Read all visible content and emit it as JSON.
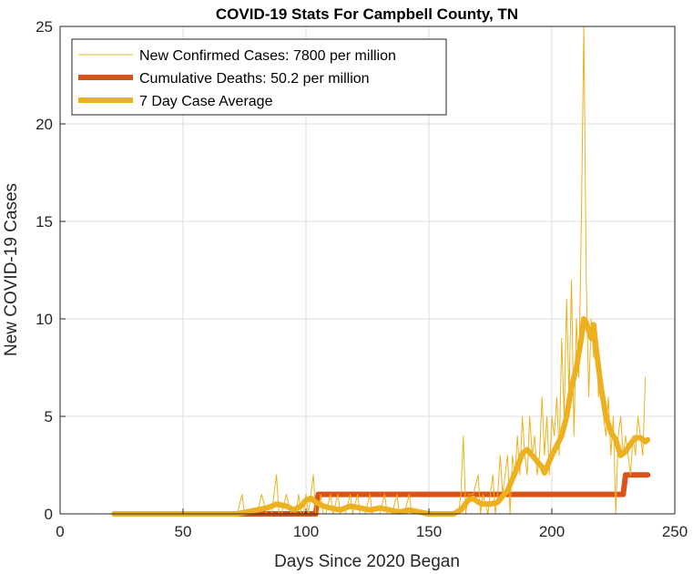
{
  "chart_data": {
    "type": "line",
    "title": "COVID-19 Stats For Campbell County, TN",
    "xlabel": "Days Since 2020 Began",
    "ylabel": "New COVID-19 Cases",
    "xlim": [
      0,
      250
    ],
    "ylim": [
      0,
      25
    ],
    "xticks": [
      0,
      50,
      100,
      150,
      200,
      250
    ],
    "yticks": [
      0,
      5,
      10,
      15,
      20,
      25
    ],
    "grid": true,
    "legend_position": "top-left",
    "series": [
      {
        "name": "New Confirmed Cases: 7800 per million",
        "color": "#EDB120",
        "style": "thin",
        "points": [
          [
            22,
            0
          ],
          [
            70,
            0
          ],
          [
            72,
            0
          ],
          [
            74,
            1
          ],
          [
            75,
            0
          ],
          [
            80,
            0
          ],
          [
            82,
            1
          ],
          [
            84,
            0
          ],
          [
            86,
            0
          ],
          [
            88,
            2
          ],
          [
            89,
            0
          ],
          [
            90,
            0
          ],
          [
            92,
            1
          ],
          [
            94,
            0
          ],
          [
            96,
            0
          ],
          [
            97,
            1
          ],
          [
            98,
            0
          ],
          [
            99,
            0
          ],
          [
            100,
            1
          ],
          [
            101,
            0
          ],
          [
            102,
            1
          ],
          [
            103,
            2
          ],
          [
            104,
            0
          ],
          [
            105,
            0
          ],
          [
            106,
            1
          ],
          [
            107,
            0
          ],
          [
            108,
            0
          ],
          [
            110,
            1
          ],
          [
            111,
            0
          ],
          [
            113,
            1
          ],
          [
            114,
            0
          ],
          [
            116,
            0
          ],
          [
            118,
            1
          ],
          [
            119,
            0
          ],
          [
            121,
            1
          ],
          [
            122,
            0
          ],
          [
            124,
            0
          ],
          [
            126,
            1
          ],
          [
            127,
            0
          ],
          [
            130,
            0
          ],
          [
            132,
            1
          ],
          [
            133,
            0
          ],
          [
            135,
            0
          ],
          [
            137,
            1
          ],
          [
            138,
            0
          ],
          [
            140,
            0
          ],
          [
            142,
            1
          ],
          [
            143,
            0
          ],
          [
            145,
            0
          ],
          [
            150,
            0
          ],
          [
            155,
            0
          ],
          [
            160,
            0
          ],
          [
            162,
            0
          ],
          [
            163,
            1
          ],
          [
            164,
            4
          ],
          [
            165,
            0
          ],
          [
            166,
            1
          ],
          [
            168,
            1
          ],
          [
            170,
            2
          ],
          [
            171,
            0
          ],
          [
            172,
            1
          ],
          [
            174,
            0
          ],
          [
            175,
            1
          ],
          [
            176,
            2
          ],
          [
            177,
            0
          ],
          [
            178,
            1
          ],
          [
            179,
            3
          ],
          [
            180,
            1
          ],
          [
            181,
            2
          ],
          [
            182,
            3
          ],
          [
            183,
            0
          ],
          [
            184,
            3
          ],
          [
            185,
            2
          ],
          [
            186,
            4
          ],
          [
            187,
            2
          ],
          [
            188,
            5
          ],
          [
            189,
            3
          ],
          [
            190,
            2
          ],
          [
            191,
            5
          ],
          [
            192,
            3
          ],
          [
            193,
            4
          ],
          [
            194,
            2
          ],
          [
            195,
            3
          ],
          [
            196,
            6
          ],
          [
            197,
            3
          ],
          [
            198,
            5
          ],
          [
            199,
            2
          ],
          [
            200,
            5
          ],
          [
            201,
            4
          ],
          [
            202,
            6
          ],
          [
            203,
            3
          ],
          [
            204,
            9
          ],
          [
            205,
            5
          ],
          [
            206,
            11
          ],
          [
            207,
            6
          ],
          [
            208,
            12
          ],
          [
            209,
            4
          ],
          [
            210,
            10
          ],
          [
            211,
            7
          ],
          [
            212,
            15
          ],
          [
            213,
            25
          ],
          [
            214,
            12
          ],
          [
            215,
            6
          ],
          [
            216,
            10
          ],
          [
            217,
            8
          ],
          [
            218,
            9
          ],
          [
            219,
            6
          ],
          [
            220,
            7
          ],
          [
            221,
            5
          ],
          [
            222,
            4
          ],
          [
            223,
            6
          ],
          [
            224,
            3
          ],
          [
            225,
            5
          ],
          [
            226,
            0
          ],
          [
            227,
            4
          ],
          [
            228,
            5
          ],
          [
            229,
            3
          ],
          [
            230,
            4
          ],
          [
            231,
            3
          ],
          [
            232,
            2
          ],
          [
            233,
            4
          ],
          [
            234,
            3
          ],
          [
            235,
            5
          ],
          [
            236,
            4
          ],
          [
            237,
            3
          ],
          [
            238,
            7
          ]
        ]
      },
      {
        "name": "Cumulative Deaths: 50.2 per million",
        "color": "#D95319",
        "style": "thick",
        "points": [
          [
            22,
            0
          ],
          [
            104,
            0
          ],
          [
            105,
            1
          ],
          [
            229,
            1
          ],
          [
            230,
            2
          ],
          [
            239,
            2
          ]
        ]
      },
      {
        "name": "7 Day Case Average",
        "color": "#EDB120",
        "style": "thick",
        "points": [
          [
            22,
            0
          ],
          [
            72,
            0
          ],
          [
            76,
            0.1
          ],
          [
            80,
            0.2
          ],
          [
            84,
            0.3
          ],
          [
            88,
            0.5
          ],
          [
            92,
            0.4
          ],
          [
            95,
            0.2
          ],
          [
            98,
            0.4
          ],
          [
            100,
            0.7
          ],
          [
            102,
            0.8
          ],
          [
            104,
            0.6
          ],
          [
            107,
            0.4
          ],
          [
            110,
            0.3
          ],
          [
            114,
            0.2
          ],
          [
            118,
            0.4
          ],
          [
            122,
            0.3
          ],
          [
            126,
            0.2
          ],
          [
            130,
            0.3
          ],
          [
            134,
            0.2
          ],
          [
            138,
            0.1
          ],
          [
            142,
            0.2
          ],
          [
            146,
            0.1
          ],
          [
            150,
            0
          ],
          [
            155,
            0
          ],
          [
            160,
            0
          ],
          [
            163,
            0.2
          ],
          [
            166,
            0.7
          ],
          [
            168,
            0.8
          ],
          [
            170,
            0.6
          ],
          [
            172,
            0.5
          ],
          [
            175,
            0.5
          ],
          [
            178,
            0.6
          ],
          [
            180,
            0.9
          ],
          [
            182,
            1.2
          ],
          [
            184,
            1.8
          ],
          [
            186,
            2.4
          ],
          [
            188,
            3.1
          ],
          [
            190,
            3.3
          ],
          [
            192,
            3.0
          ],
          [
            194,
            2.7
          ],
          [
            196,
            2.4
          ],
          [
            197,
            2.1
          ],
          [
            198,
            2.4
          ],
          [
            200,
            3.0
          ],
          [
            202,
            3.5
          ],
          [
            204,
            4.0
          ],
          [
            206,
            5.0
          ],
          [
            208,
            6.5
          ],
          [
            210,
            7.5
          ],
          [
            212,
            9.0
          ],
          [
            213,
            10.0
          ],
          [
            214,
            9.8
          ],
          [
            216,
            9.0
          ],
          [
            217,
            9.7
          ],
          [
            218,
            8.5
          ],
          [
            220,
            6.5
          ],
          [
            222,
            5.0
          ],
          [
            224,
            4.2
          ],
          [
            226,
            3.8
          ],
          [
            228,
            3.0
          ],
          [
            230,
            3.2
          ],
          [
            232,
            3.6
          ],
          [
            234,
            3.9
          ],
          [
            236,
            3.9
          ],
          [
            238,
            3.7
          ],
          [
            239,
            3.8
          ]
        ]
      }
    ]
  }
}
